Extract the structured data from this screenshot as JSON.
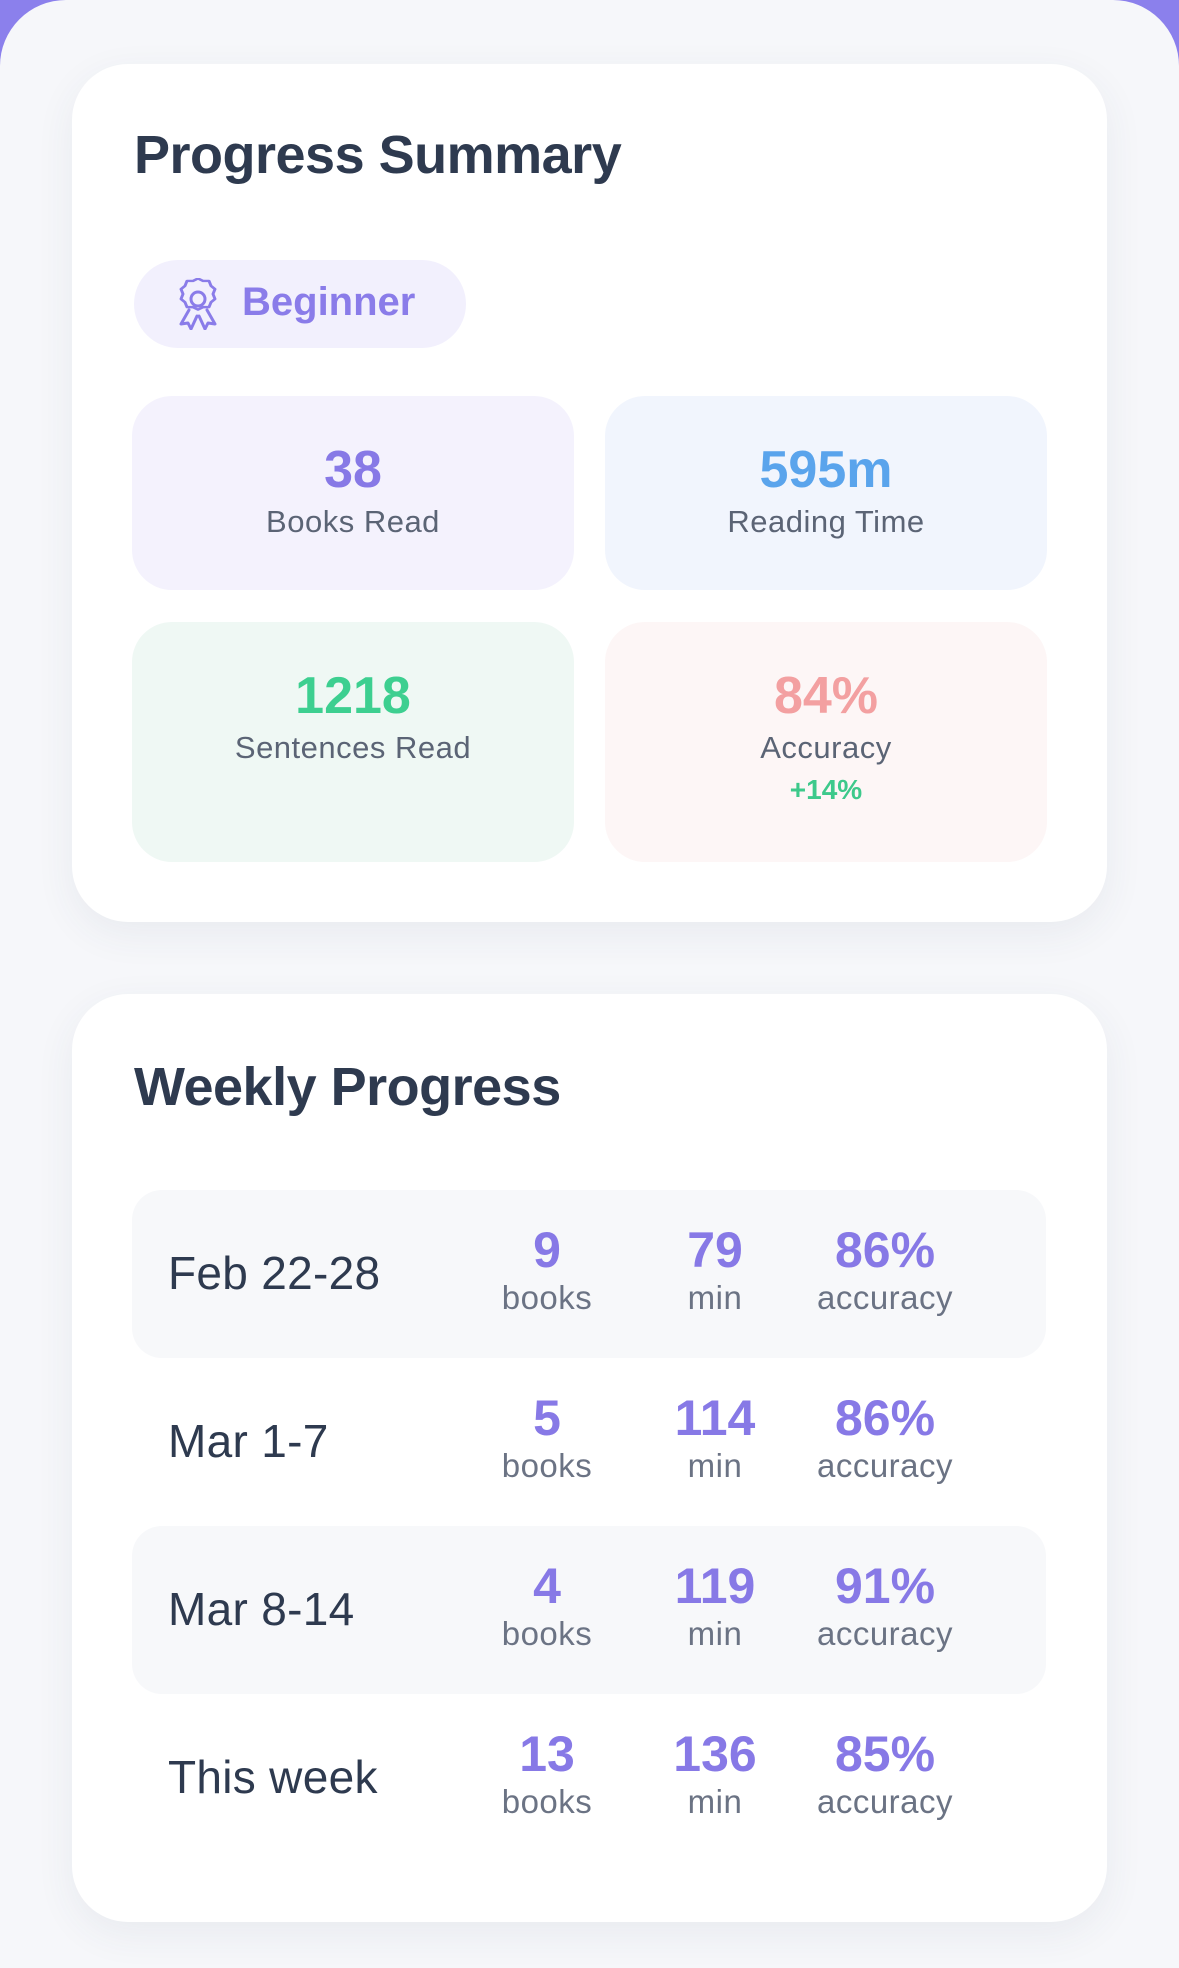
{
  "summary": {
    "title": "Progress Summary",
    "level": "Beginner",
    "level_icon": "award-ribbon-icon",
    "stats": {
      "books": {
        "value": "38",
        "label": "Books Read",
        "color": "#8779e6"
      },
      "time": {
        "value": "595m",
        "label": "Reading Time",
        "color": "#5aa4ec"
      },
      "sentences": {
        "value": "1218",
        "label": "Sentences Read",
        "color": "#3dcf90"
      },
      "accuracy": {
        "value": "84%",
        "label": "Accuracy",
        "delta": "+14%",
        "color": "#f3a0a1"
      }
    }
  },
  "weekly": {
    "title": "Weekly Progress",
    "rows": [
      {
        "date": "Feb 22-28",
        "books": "9",
        "books_unit": "books",
        "min": "79",
        "min_unit": "min",
        "accuracy": "86%",
        "accuracy_unit": "accuracy"
      },
      {
        "date": "Mar 1-7",
        "books": "5",
        "books_unit": "books",
        "min": "114",
        "min_unit": "min",
        "accuracy": "86%",
        "accuracy_unit": "accuracy"
      },
      {
        "date": "Mar 8-14",
        "books": "4",
        "books_unit": "books",
        "min": "119",
        "min_unit": "min",
        "accuracy": "91%",
        "accuracy_unit": "accuracy"
      },
      {
        "date": "This week",
        "books": "13",
        "books_unit": "books",
        "min": "136",
        "min_unit": "min",
        "accuracy": "85%",
        "accuracy_unit": "accuracy"
      }
    ]
  }
}
